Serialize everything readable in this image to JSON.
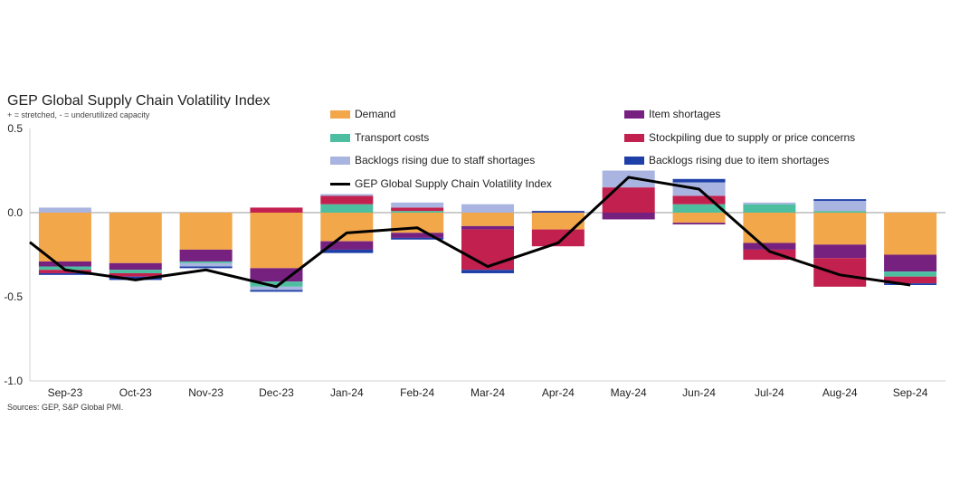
{
  "chart_data": {
    "type": "bar",
    "stacked": true,
    "title": "GEP Global Supply Chain Volatility Index",
    "subtitle": "+ = stretched, - = underutilized capacity",
    "source": "Sources: GEP, S&P Global PMI.",
    "categories": [
      "Sep-23",
      "Oct-23",
      "Nov-23",
      "Dec-23",
      "Jan-24",
      "Feb-24",
      "Mar-24",
      "Apr-24",
      "May-24",
      "Jun-24",
      "Jul-24",
      "Aug-24",
      "Sep-24"
    ],
    "ylim": [
      -1.0,
      0.5
    ],
    "yticks": [
      "0.5",
      "0.0",
      "-0.5",
      "-1.0"
    ],
    "ytick_values": [
      0.5,
      0.0,
      -0.5,
      -1.0
    ],
    "grid": false,
    "legend_placement": "top",
    "series": [
      {
        "name": "Demand",
        "color": "#F2A74B",
        "values": [
          -0.29,
          -0.3,
          -0.22,
          -0.33,
          -0.17,
          -0.12,
          -0.08,
          -0.1,
          0.0,
          -0.06,
          -0.18,
          -0.19,
          -0.25
        ]
      },
      {
        "name": "Item shortages",
        "color": "#76217F",
        "values": [
          -0.03,
          -0.04,
          -0.07,
          -0.08,
          -0.05,
          -0.03,
          -0.02,
          0.0,
          -0.04,
          -0.01,
          -0.04,
          -0.08,
          -0.1
        ]
      },
      {
        "name": "Transport costs",
        "color": "#4DBFA0",
        "values": [
          -0.02,
          -0.02,
          -0.01,
          -0.03,
          0.05,
          0.01,
          0.0,
          0.0,
          0.0,
          0.05,
          0.05,
          0.01,
          -0.03
        ]
      },
      {
        "name": "Stockpiling due to supply or price concerns",
        "color": "#C2204F",
        "values": [
          -0.02,
          -0.02,
          0.0,
          0.03,
          0.05,
          0.02,
          -0.24,
          -0.1,
          0.15,
          0.05,
          -0.06,
          -0.17,
          -0.04
        ]
      },
      {
        "name": "Backlogs rising due to staff shortages",
        "color": "#A9B4E0",
        "values": [
          0.03,
          0.0,
          -0.02,
          -0.02,
          0.01,
          0.03,
          0.05,
          0.0,
          0.1,
          0.08,
          0.01,
          0.06,
          0.0
        ]
      },
      {
        "name": "Backlogs rising due to item shortages",
        "color": "#1F3FA8",
        "values": [
          -0.01,
          -0.02,
          -0.01,
          -0.01,
          -0.02,
          -0.01,
          -0.02,
          0.01,
          0.0,
          0.02,
          0.0,
          0.01,
          -0.01
        ]
      }
    ],
    "line": {
      "name": "GEP Global Supply Chain Volatility Index",
      "color": "#000000",
      "values": [
        -0.34,
        -0.4,
        -0.34,
        -0.44,
        -0.12,
        -0.09,
        -0.32,
        -0.18,
        0.21,
        0.14,
        -0.23,
        -0.37,
        -0.43
      ]
    }
  }
}
